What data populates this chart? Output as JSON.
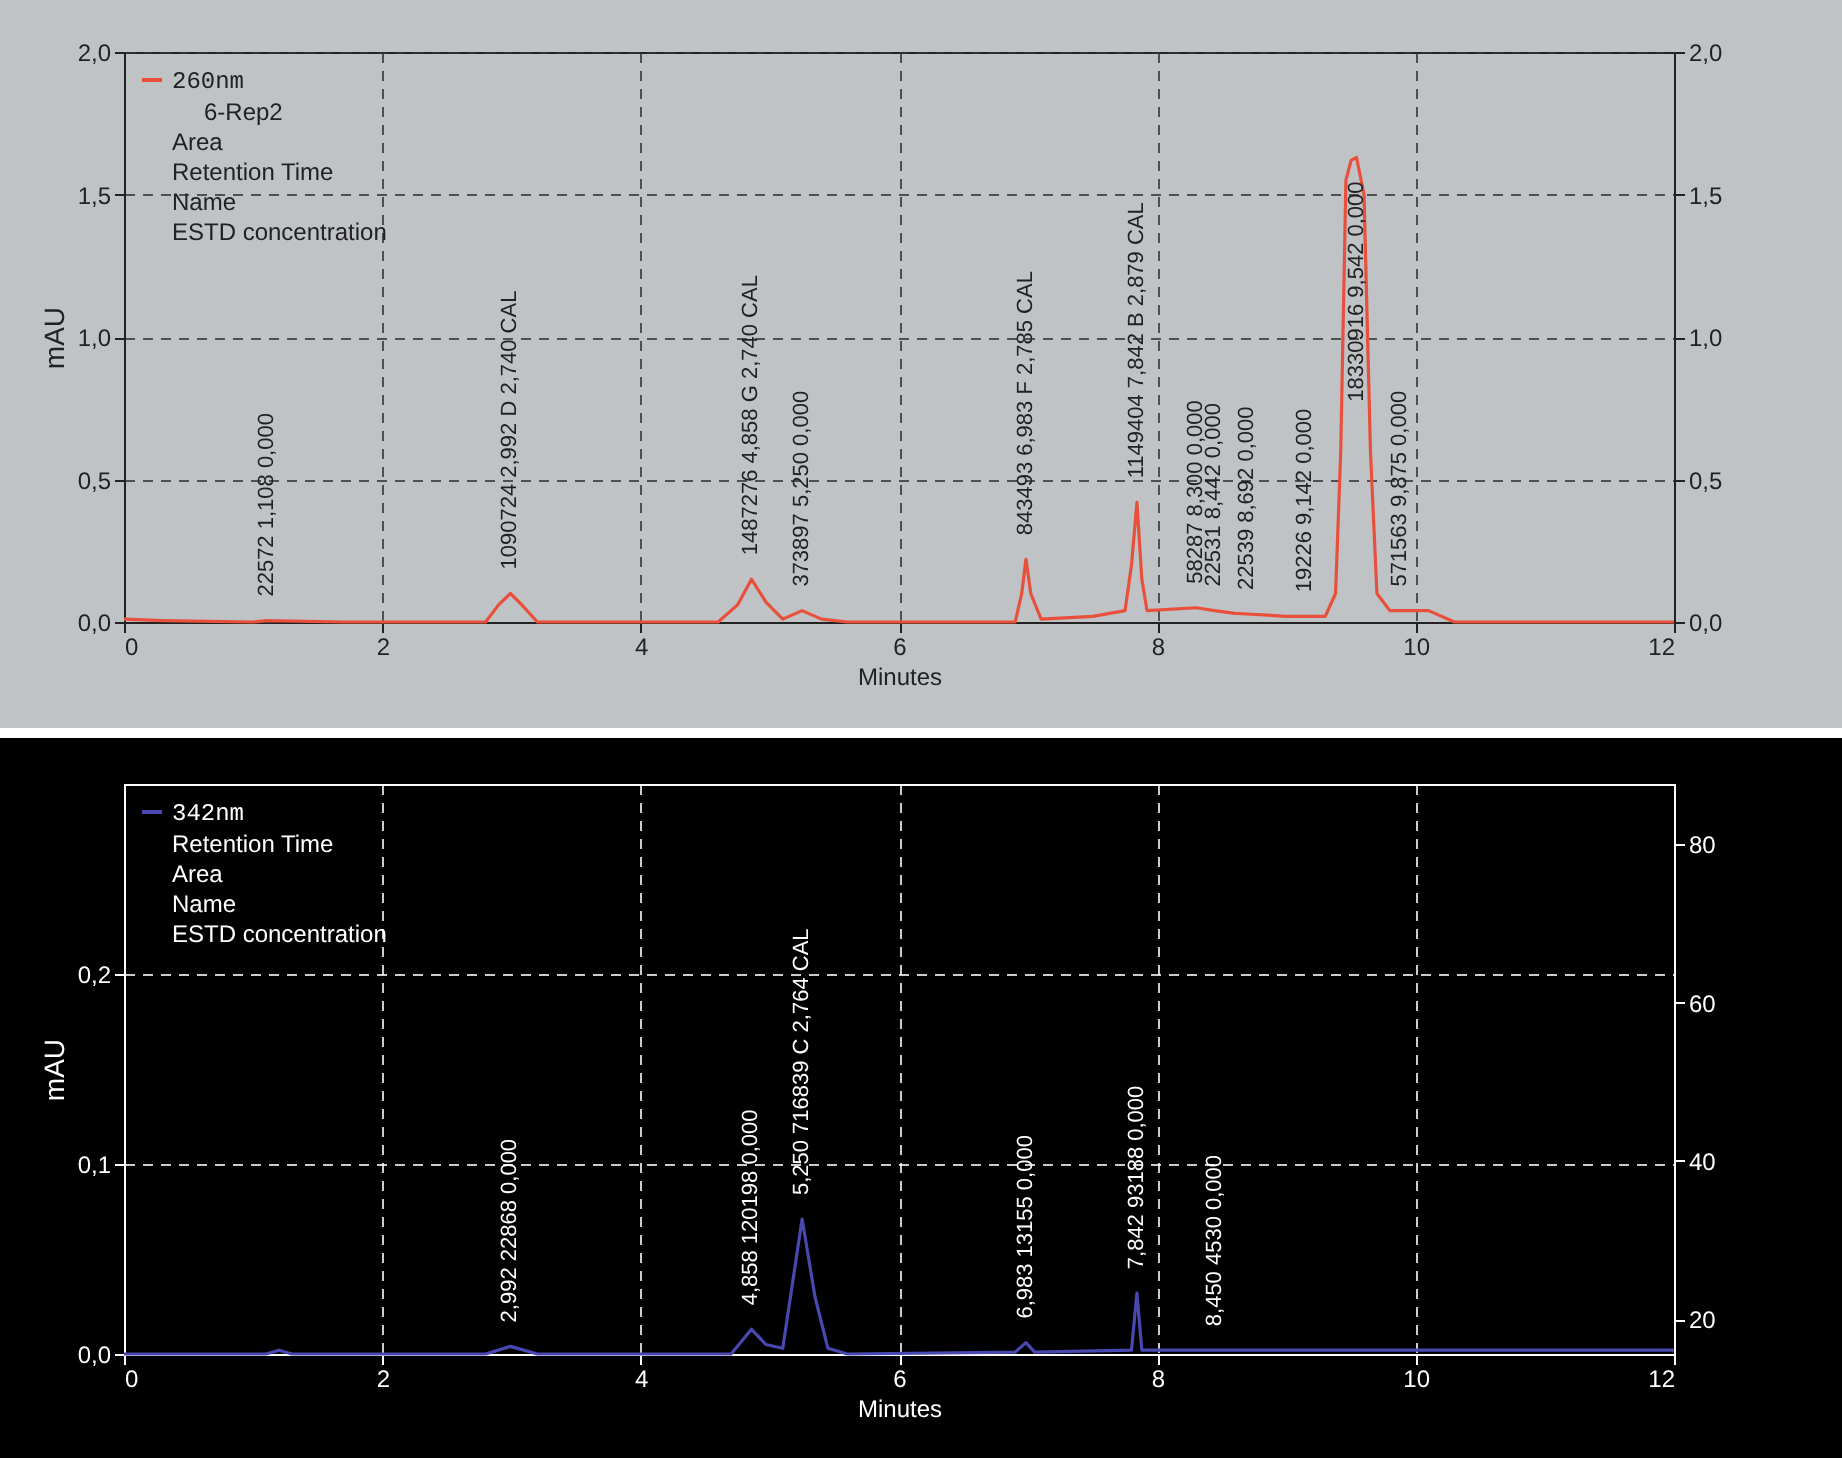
{
  "chart_data": [
    {
      "type": "line",
      "xlabel": "Minutes",
      "ylabel": "mAU",
      "grid": true,
      "legend": "top left",
      "xlim": [
        0,
        12
      ],
      "xticks": [
        0,
        2,
        4,
        6,
        8,
        10,
        12
      ],
      "ylim": [
        0,
        2
      ],
      "yticks": [
        {
          "value": 0,
          "label": "0,0"
        },
        {
          "value": 0.5,
          "label": "0,5"
        },
        {
          "value": 1,
          "label": "1,0"
        },
        {
          "value": 1.5,
          "label": "1,5"
        },
        {
          "value": 2,
          "label": "2,0"
        }
      ],
      "y2lim": [
        0,
        2
      ],
      "y2ticks": [
        {
          "value": 0,
          "label": "0,0"
        },
        {
          "value": 0.5,
          "label": "0,5"
        },
        {
          "value": 1,
          "label": "1,0"
        },
        {
          "value": 1.5,
          "label": "1,5"
        },
        {
          "value": 2,
          "label": "2,0"
        }
      ],
      "series": [
        {
          "name": "260nm",
          "color": "#e8503c",
          "x": [
            0,
            0.3,
            1.0,
            1.108,
            1.7,
            2.8,
            2.9,
            2.992,
            3.08,
            3.2,
            4.6,
            4.75,
            4.858,
            4.97,
            5.1,
            5.25,
            5.4,
            5.6,
            6.9,
            6.95,
            6.983,
            7.02,
            7.1,
            7.5,
            7.75,
            7.8,
            7.842,
            7.88,
            7.92,
            8.3,
            8.442,
            8.6,
            8.692,
            9.0,
            9.142,
            9.3,
            9.38,
            9.42,
            9.46,
            9.5,
            9.542,
            9.6,
            9.65,
            9.7,
            9.8,
            9.875,
            10.1,
            10.3,
            12
          ],
          "values": [
            0.01,
            0.005,
            0.0,
            0.005,
            0.0,
            0.0,
            0.06,
            0.1,
            0.06,
            0.0,
            0.0,
            0.06,
            0.15,
            0.07,
            0.01,
            0.04,
            0.01,
            0.0,
            0.0,
            0.1,
            0.22,
            0.1,
            0.01,
            0.02,
            0.04,
            0.2,
            0.42,
            0.15,
            0.04,
            0.05,
            0.04,
            0.03,
            0.028,
            0.02,
            0.02,
            0.02,
            0.1,
            0.6,
            1.55,
            1.62,
            1.63,
            1.5,
            0.6,
            0.1,
            0.04,
            0.04,
            0.04,
            0.0,
            0.0
          ]
        }
      ],
      "annotations": [
        "6-Rep2",
        "Area",
        "Retention Time",
        "Name",
        "ESTD concentration",
        {
          "text": "22572  1,108  0,000",
          "x": 1.108,
          "y": 0.005
        },
        {
          "text": "1090724  2,992  D  2,740 CAL",
          "x": 2.992,
          "y": 0.1
        },
        {
          "text": "1487276  4,858  G  2,740 CAL",
          "x": 4.858,
          "y": 0.15
        },
        {
          "text": "373897  5,250  0,000",
          "x": 5.25,
          "y": 0.04
        },
        {
          "text": "843493  6,983  F  2,785 CAL",
          "x": 6.983,
          "y": 0.22
        },
        {
          "text": "1149404  7,842  B  2,879 CAL",
          "x": 7.842,
          "y": 0.42
        },
        {
          "text": "58287  8,300  0,000",
          "x": 8.3,
          "y": 0.05
        },
        {
          "text": "22531  8,442  0,000",
          "x": 8.442,
          "y": 0.04
        },
        {
          "text": "22539  8,692  0,000",
          "x": 8.692,
          "y": 0.028
        },
        {
          "text": "19226  9,142  0,000",
          "x": 9.142,
          "y": 0.02
        },
        {
          "text": "18330916  9,542  0,000",
          "x": 9.542,
          "y": 1.63
        },
        {
          "text": "571563  9,875  0,000",
          "x": 9.875,
          "y": 0.04
        }
      ]
    },
    {
      "type": "line",
      "xlabel": "Minutes",
      "ylabel": "mAU",
      "grid": true,
      "legend": "top left",
      "xlim": [
        0,
        12
      ],
      "xticks": [
        0,
        2,
        4,
        6,
        8,
        10,
        12
      ],
      "ylim": [
        0,
        0.3
      ],
      "yticks": [
        {
          "value": 0,
          "label": "0,0"
        },
        {
          "value": 0.1,
          "label": "0,1"
        },
        {
          "value": 0.2,
          "label": "0,2"
        }
      ],
      "y2lim": [
        15.6,
        87.6
      ],
      "y2ticks": [
        20,
        40,
        60,
        80
      ],
      "series": [
        {
          "name": "342nm",
          "color": "#4848b0",
          "x": [
            0,
            1.1,
            1.2,
            1.3,
            2.8,
            2.992,
            3.2,
            4.7,
            4.858,
            4.97,
            5.1,
            5.25,
            5.35,
            5.45,
            5.6,
            6.9,
            6.983,
            7.05,
            7.8,
            7.842,
            7.88,
            8.45,
            8.6,
            10,
            12
          ],
          "values": [
            0,
            0,
            0.002,
            0,
            0,
            0.004,
            0,
            0,
            0.013,
            0.005,
            0.003,
            0.071,
            0.03,
            0.003,
            0,
            0.001,
            0.006,
            0.001,
            0.002,
            0.032,
            0.002,
            0.002,
            0.002,
            0.002,
            0.002
          ]
        }
      ],
      "annotations": [
        "Retention Time",
        "Area",
        "Name",
        "ESTD concentration",
        {
          "text": "2,992  22868  0,000",
          "x": 2.992,
          "y": 0.004
        },
        {
          "text": "4,858  120198  0,000",
          "x": 4.858,
          "y": 0.013
        },
        {
          "text": "5,250  716839  C  2,764 CAL",
          "x": 5.25,
          "y": 0.071
        },
        {
          "text": "6,983  13155  0,000",
          "x": 6.983,
          "y": 0.006
        },
        {
          "text": "7,842  93188  0,000",
          "x": 7.842,
          "y": 0.032
        },
        {
          "text": "8,450  4530  0,000",
          "x": 8.45,
          "y": 0.002
        }
      ]
    }
  ]
}
